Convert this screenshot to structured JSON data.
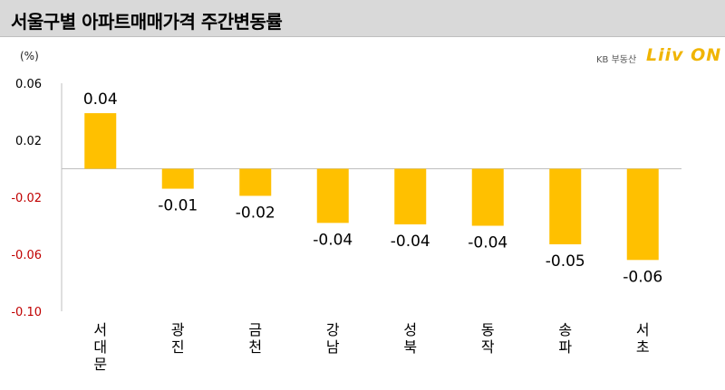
{
  "title": "서울구별 아파트매매가격 주간변동률",
  "logo": {
    "kb_text": "KB 부동산",
    "liiv_text": "Liiv ON"
  },
  "chart_data": {
    "type": "bar",
    "unit_label": "(%)",
    "categories": [
      "서대문",
      "광진",
      "금천",
      "강남",
      "성북",
      "동작",
      "송파",
      "서초"
    ],
    "values": [
      0.04,
      -0.01,
      -0.02,
      -0.04,
      -0.04,
      -0.04,
      -0.05,
      -0.06
    ],
    "data_labels": [
      "0.04",
      "-0.01",
      "-0.02",
      "-0.04",
      "-0.04",
      "-0.04",
      "-0.05",
      "-0.06"
    ],
    "plot_values": [
      0.039,
      -0.014,
      -0.019,
      -0.038,
      -0.039,
      -0.04,
      -0.053,
      -0.064
    ],
    "yticks": [
      0.06,
      0.02,
      -0.02,
      -0.06,
      -0.1
    ],
    "ytick_labels": [
      "0.06",
      "0.02",
      "-0.02",
      "-0.06",
      "-0.10"
    ],
    "ylim": [
      -0.1,
      0.06
    ],
    "bar_color": "#ffc000",
    "negative_tick_color": "#c00000",
    "grid": false
  }
}
